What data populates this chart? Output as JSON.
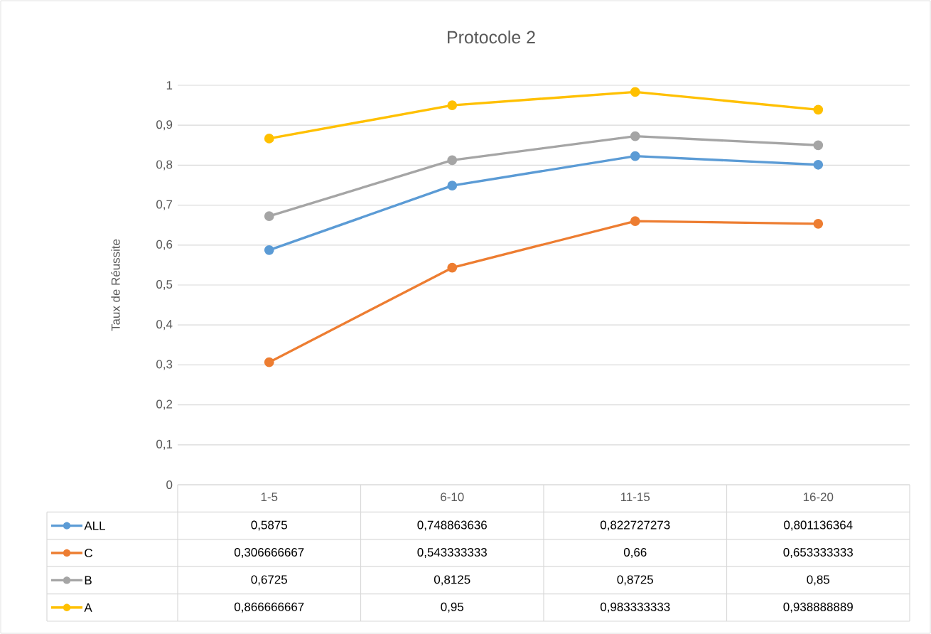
{
  "chart_data": {
    "type": "line",
    "title": "Protocole 2",
    "ylabel": "Taux de Réussite",
    "categories": [
      "1-5",
      "6-10",
      "11-15",
      "16-20"
    ],
    "ylim": [
      0,
      1
    ],
    "yticks": [
      0,
      {
        "value": 0.1,
        "label": "0,1"
      },
      {
        "value": 0.2,
        "label": "0,2"
      },
      {
        "value": 0.3,
        "label": "0,3"
      },
      {
        "value": 0.4,
        "label": "0,4"
      },
      {
        "value": 0.5,
        "label": "0,5"
      },
      {
        "value": 0.6,
        "label": "0,6"
      },
      {
        "value": 0.7,
        "label": "0,7"
      },
      {
        "value": 0.8,
        "label": "0,8"
      },
      {
        "value": 0.9,
        "label": "0,9"
      },
      1
    ],
    "grid": "y",
    "legend": "bottom",
    "marker": "circle",
    "series": [
      {
        "name": "ALL",
        "color": "#5b9bd5",
        "values": [
          0.5875,
          0.748863636,
          0.822727273,
          0.801136364
        ],
        "value_labels": [
          "0,5875",
          "0,748863636",
          "0,822727273",
          "0,801136364"
        ]
      },
      {
        "name": "C",
        "color": "#ed7d31",
        "values": [
          0.306666667,
          0.543333333,
          0.66,
          0.653333333
        ],
        "value_labels": [
          "0,306666667",
          "0,543333333",
          "0,66",
          "0,653333333"
        ]
      },
      {
        "name": "B",
        "color": "#a5a5a5",
        "values": [
          0.6725,
          0.8125,
          0.8725,
          0.85
        ],
        "value_labels": [
          "0,6725",
          "0,8125",
          "0,8725",
          "0,85"
        ]
      },
      {
        "name": "A",
        "color": "#ffc000",
        "values": [
          0.866666667,
          0.95,
          0.983333333,
          0.938888889
        ],
        "value_labels": [
          "0,866666667",
          "0,95",
          "0,983333333",
          "0,938888889"
        ]
      }
    ]
  }
}
